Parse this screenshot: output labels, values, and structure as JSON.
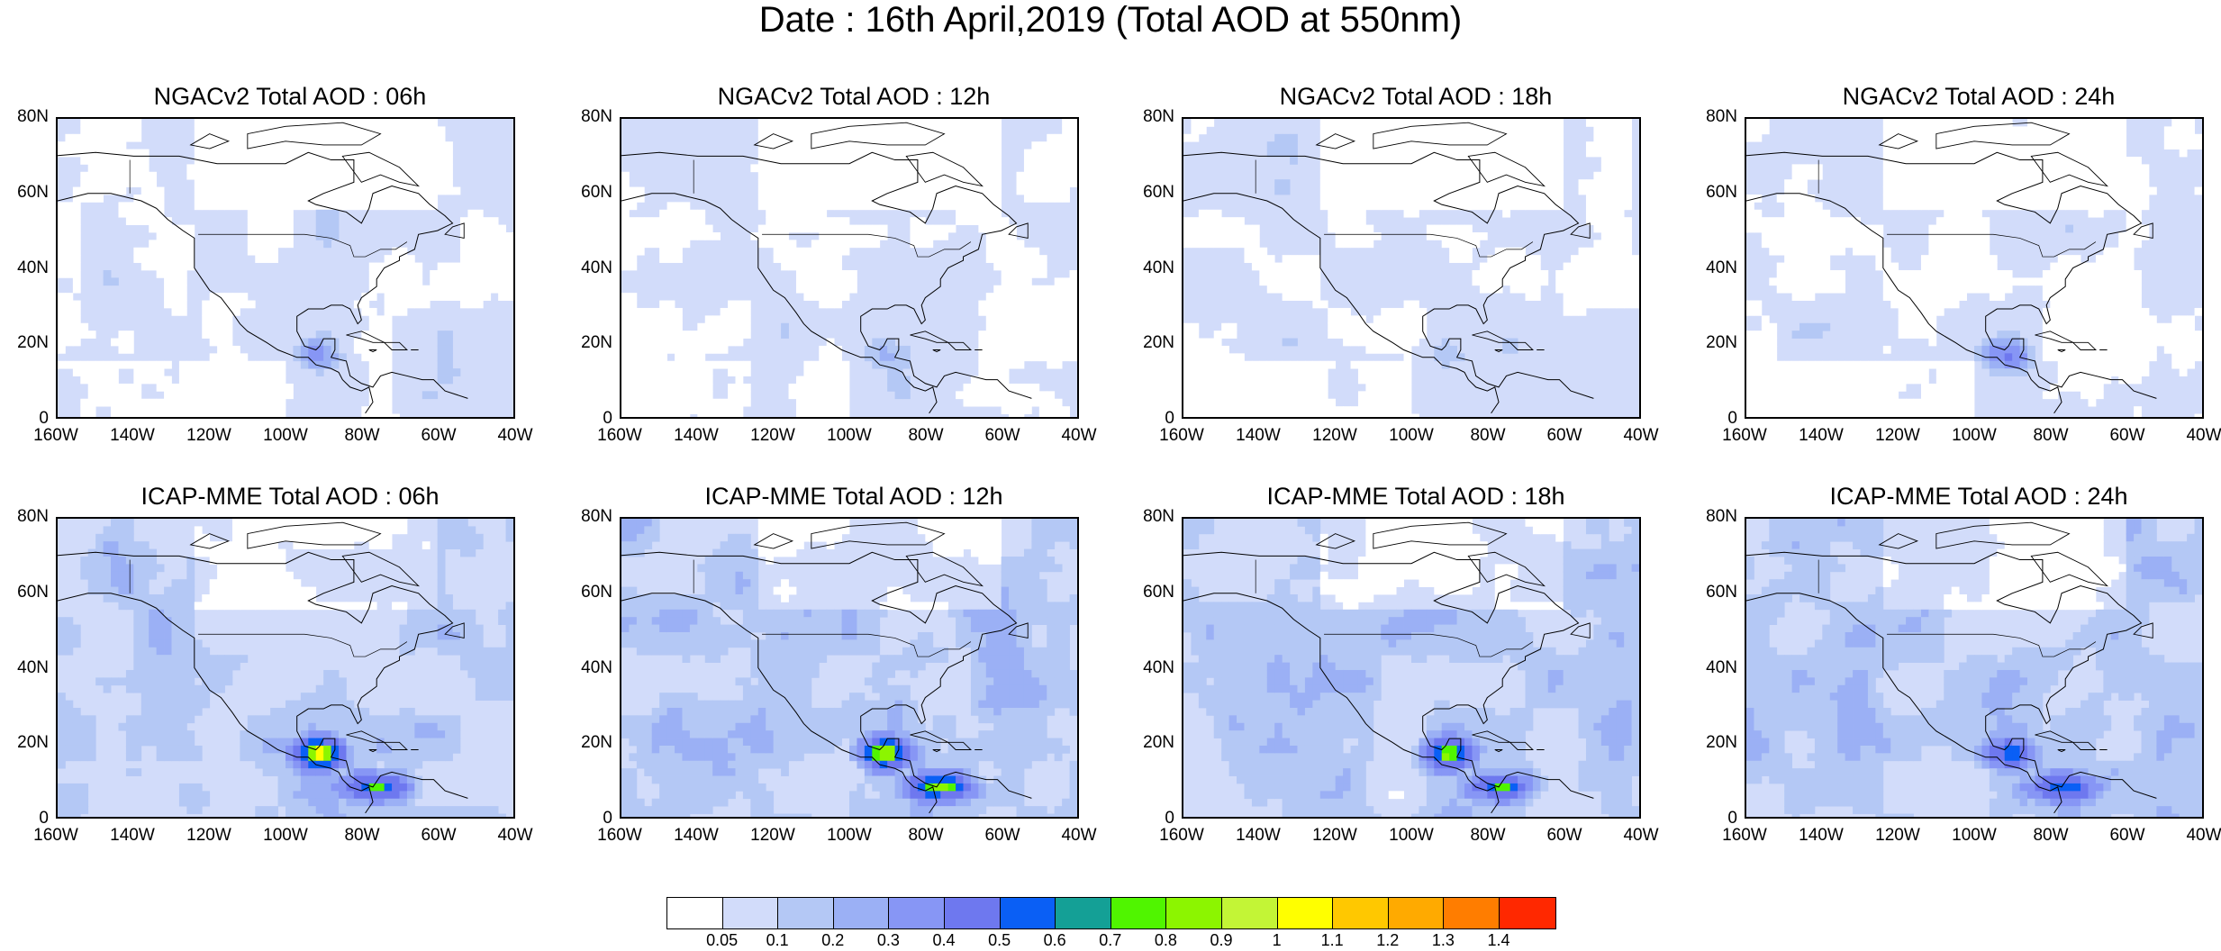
{
  "title": "Date : 16th April,2019 (Total AOD at 550nm)",
  "panels": [
    {
      "title": "NGACv2 Total AOD : 06h",
      "model": "ngac",
      "hot": 0.35
    },
    {
      "title": "NGACv2 Total AOD : 12h",
      "model": "ngac",
      "hot": 0.2
    },
    {
      "title": "NGACv2 Total AOD : 18h",
      "model": "ngac",
      "hot": 0.2
    },
    {
      "title": "NGACv2 Total AOD : 24h",
      "model": "ngac",
      "hot": 0.45
    },
    {
      "title": "ICAP-MME Total AOD : 06h",
      "model": "icap",
      "hot": 0.85
    },
    {
      "title": "ICAP-MME Total AOD : 12h",
      "model": "icap",
      "hot": 0.8
    },
    {
      "title": "ICAP-MME Total AOD : 18h",
      "model": "icap",
      "hot": 0.7
    },
    {
      "title": "ICAP-MME Total AOD : 24h",
      "model": "icap",
      "hot": 0.6
    }
  ],
  "lat_labels": [
    "80N",
    "60N",
    "40N",
    "20N",
    "0"
  ],
  "lon_labels": [
    "160W",
    "140W",
    "120W",
    "100W",
    "80W",
    "60W",
    "40W"
  ],
  "colorbar": {
    "colors": [
      "#ffffff",
      "#d2dcfa",
      "#b4c8f5",
      "#9bb0f5",
      "#8796f5",
      "#6e78ef",
      "#0a5ff5",
      "#14a096",
      "#50f500",
      "#8cf500",
      "#c3f536",
      "#ffff00",
      "#ffc800",
      "#ffaa00",
      "#ff7d00",
      "#ff2800"
    ],
    "labels": [
      "0.05",
      "0.1",
      "0.2",
      "0.3",
      "0.4",
      "0.5",
      "0.6",
      "0.7",
      "0.8",
      "0.9",
      "1",
      "1.1",
      "1.2",
      "1.3",
      "1.4"
    ]
  }
}
